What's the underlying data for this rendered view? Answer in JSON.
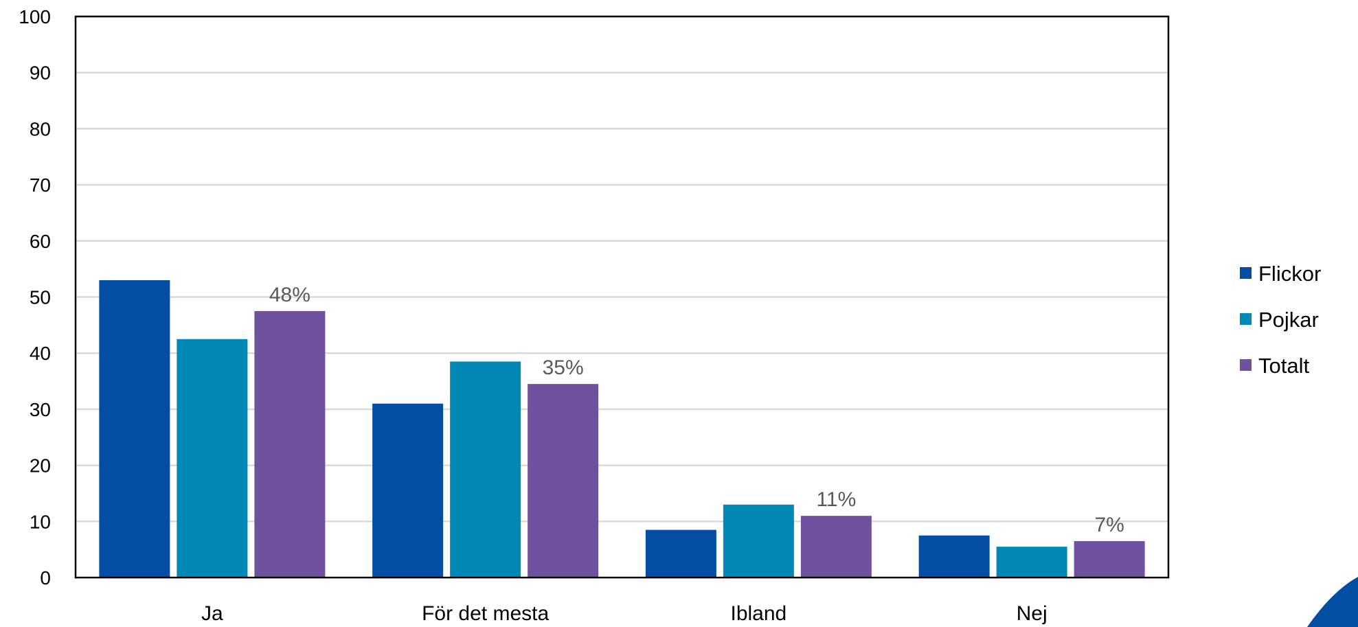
{
  "chart_data": {
    "type": "bar",
    "categories": [
      "Ja",
      "För det mesta",
      "Ibland",
      "Nej"
    ],
    "series": [
      {
        "name": "Flickor",
        "color": "#034EA2",
        "values": [
          53,
          31,
          8.5,
          7.5
        ]
      },
      {
        "name": "Pojkar",
        "color": "#0089B6",
        "values": [
          42.5,
          38.5,
          13,
          5.5
        ]
      },
      {
        "name": "Totalt",
        "color": "#6E529F",
        "values": [
          47.5,
          34.5,
          11,
          6.5
        ]
      }
    ],
    "data_labels": [
      {
        "series": "Totalt",
        "category": "Ja",
        "text": "48%"
      },
      {
        "series": "Totalt",
        "category": "För det mesta",
        "text": "35%"
      },
      {
        "series": "Totalt",
        "category": "Ibland",
        "text": "11%"
      },
      {
        "series": "Totalt",
        "category": "Nej",
        "text": "7%"
      }
    ],
    "yticks": [
      "0",
      "10",
      "20",
      "30",
      "40",
      "50",
      "60",
      "70",
      "80",
      "90",
      "100"
    ],
    "ylim": [
      0,
      100
    ],
    "grid": true,
    "legend_position": "right",
    "title": "",
    "xlabel": "",
    "ylabel": ""
  },
  "decoration": {
    "corner_accent_color": "#034EA2"
  }
}
